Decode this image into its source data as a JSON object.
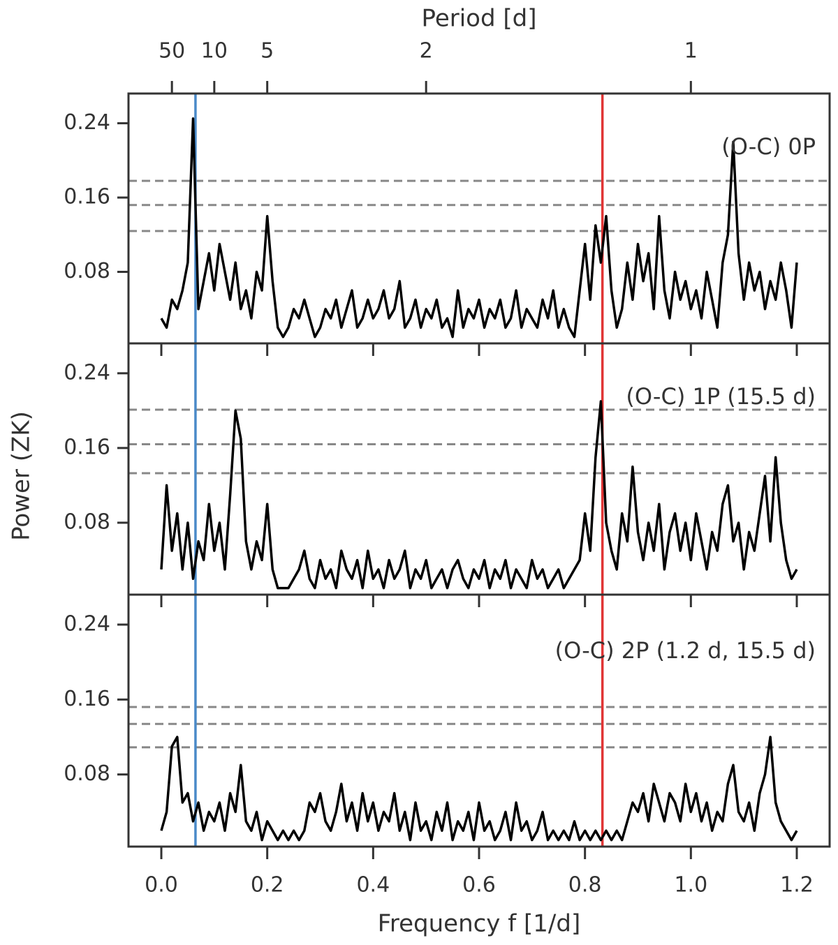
{
  "chart_data": [
    {
      "type": "line",
      "label": "(O-C) 0P",
      "x2label": "Period [d]",
      "x2ticks": [
        50,
        10,
        5,
        2,
        1
      ],
      "xlim": [
        -0.062,
        1.262
      ],
      "ylim": [
        0.003,
        0.272
      ],
      "yticks": [
        0.24,
        0.16,
        0.08
      ],
      "xticks": [
        {
          "value": 0,
          "label": "0.0"
        },
        0.2,
        0.4,
        0.6,
        0.8,
        {
          "value": 1,
          "label": "1.0"
        },
        1.2
      ],
      "vlines": [
        {
          "x": 0.0645,
          "color": "#4a8ac8"
        },
        {
          "x": 0.833,
          "color": "#e03535"
        }
      ],
      "hlines": [
        0.178,
        0.152,
        0.124
      ],
      "color": "#000000",
      "x": [
        0,
        0.01,
        0.02,
        0.03,
        0.04,
        0.05,
        0.06,
        0.07,
        0.08,
        0.09,
        0.1,
        0.11,
        0.12,
        0.13,
        0.14,
        0.15,
        0.16,
        0.17,
        0.18,
        0.19,
        0.2,
        0.21,
        0.22,
        0.23,
        0.24,
        0.25,
        0.26,
        0.27,
        0.28,
        0.29,
        0.3,
        0.31,
        0.32,
        0.33,
        0.34,
        0.35,
        0.36,
        0.37,
        0.38,
        0.39,
        0.4,
        0.41,
        0.42,
        0.43,
        0.44,
        0.45,
        0.46,
        0.47,
        0.48,
        0.49,
        0.5,
        0.51,
        0.52,
        0.53,
        0.54,
        0.55,
        0.56,
        0.57,
        0.58,
        0.59,
        0.6,
        0.61,
        0.62,
        0.63,
        0.64,
        0.65,
        0.66,
        0.67,
        0.68,
        0.69,
        0.7,
        0.71,
        0.72,
        0.73,
        0.74,
        0.75,
        0.76,
        0.77,
        0.78,
        0.79,
        0.8,
        0.81,
        0.82,
        0.83,
        0.84,
        0.85,
        0.86,
        0.87,
        0.88,
        0.89,
        0.9,
        0.91,
        0.92,
        0.93,
        0.94,
        0.95,
        0.96,
        0.97,
        0.98,
        0.99,
        1,
        1.01,
        1.02,
        1.03,
        1.04,
        1.05,
        1.06,
        1.07,
        1.08,
        1.09,
        1.1,
        1.11,
        1.12,
        1.13,
        1.14,
        1.15,
        1.16,
        1.17,
        1.18,
        1.19,
        1.2
      ],
      "values": [
        0.03,
        0.02,
        0.05,
        0.04,
        0.06,
        0.09,
        0.245,
        0.04,
        0.07,
        0.1,
        0.06,
        0.11,
        0.08,
        0.05,
        0.09,
        0.04,
        0.06,
        0.03,
        0.08,
        0.06,
        0.14,
        0.07,
        0.02,
        0.01,
        0.02,
        0.04,
        0.03,
        0.05,
        0.03,
        0.01,
        0.02,
        0.04,
        0.03,
        0.05,
        0.02,
        0.04,
        0.06,
        0.02,
        0.03,
        0.05,
        0.03,
        0.04,
        0.06,
        0.03,
        0.04,
        0.07,
        0.02,
        0.03,
        0.05,
        0.02,
        0.04,
        0.03,
        0.05,
        0.02,
        0.03,
        0.01,
        0.06,
        0.02,
        0.04,
        0.03,
        0.05,
        0.02,
        0.04,
        0.03,
        0.05,
        0.02,
        0.03,
        0.06,
        0.02,
        0.04,
        0.03,
        0.02,
        0.05,
        0.03,
        0.06,
        0.02,
        0.04,
        0.02,
        0.01,
        0.06,
        0.11,
        0.05,
        0.13,
        0.09,
        0.14,
        0.06,
        0.02,
        0.04,
        0.09,
        0.05,
        0.11,
        0.07,
        0.1,
        0.04,
        0.14,
        0.06,
        0.03,
        0.08,
        0.05,
        0.07,
        0.04,
        0.06,
        0.03,
        0.08,
        0.05,
        0.02,
        0.09,
        0.12,
        0.22,
        0.1,
        0.05,
        0.09,
        0.06,
        0.08,
        0.04,
        0.07,
        0.05,
        0.09,
        0.06,
        0.02,
        0.09
      ]
    },
    {
      "type": "line",
      "label": "(O-C) 1P (15.5 d)",
      "ylabel": "Power (ZK)",
      "xlim": [
        -0.062,
        1.262
      ],
      "ylim": [
        0.003,
        0.272
      ],
      "yticks": [
        0.24,
        0.16,
        0.08
      ],
      "vlines": [
        {
          "x": 0.0645,
          "color": "#4a8ac8"
        },
        {
          "x": 0.833,
          "color": "#e03535"
        }
      ],
      "hlines": [
        0.201,
        0.164,
        0.133
      ],
      "color": "#000000",
      "x": [
        0,
        0.01,
        0.02,
        0.03,
        0.04,
        0.05,
        0.06,
        0.07,
        0.08,
        0.09,
        0.1,
        0.11,
        0.12,
        0.13,
        0.14,
        0.15,
        0.16,
        0.17,
        0.18,
        0.19,
        0.2,
        0.21,
        0.22,
        0.23,
        0.24,
        0.25,
        0.26,
        0.27,
        0.28,
        0.29,
        0.3,
        0.31,
        0.32,
        0.33,
        0.34,
        0.35,
        0.36,
        0.37,
        0.38,
        0.39,
        0.4,
        0.41,
        0.42,
        0.43,
        0.44,
        0.45,
        0.46,
        0.47,
        0.48,
        0.49,
        0.5,
        0.51,
        0.52,
        0.53,
        0.54,
        0.55,
        0.56,
        0.57,
        0.58,
        0.59,
        0.6,
        0.61,
        0.62,
        0.63,
        0.64,
        0.65,
        0.66,
        0.67,
        0.68,
        0.69,
        0.7,
        0.71,
        0.72,
        0.73,
        0.74,
        0.75,
        0.76,
        0.77,
        0.78,
        0.79,
        0.8,
        0.81,
        0.82,
        0.83,
        0.84,
        0.85,
        0.86,
        0.87,
        0.88,
        0.89,
        0.9,
        0.91,
        0.92,
        0.93,
        0.94,
        0.95,
        0.96,
        0.97,
        0.98,
        0.99,
        1,
        1.01,
        1.02,
        1.03,
        1.04,
        1.05,
        1.06,
        1.07,
        1.08,
        1.09,
        1.1,
        1.11,
        1.12,
        1.13,
        1.14,
        1.15,
        1.16,
        1.17,
        1.18,
        1.19,
        1.2
      ],
      "values": [
        0.03,
        0.12,
        0.05,
        0.09,
        0.03,
        0.08,
        0.02,
        0.06,
        0.04,
        0.1,
        0.05,
        0.08,
        0.03,
        0.11,
        0.2,
        0.17,
        0.06,
        0.03,
        0.06,
        0.04,
        0.1,
        0.03,
        0.01,
        0.01,
        0.01,
        0.02,
        0.03,
        0.05,
        0.02,
        0.01,
        0.04,
        0.02,
        0.03,
        0.01,
        0.05,
        0.03,
        0.02,
        0.04,
        0.01,
        0.05,
        0.02,
        0.03,
        0.01,
        0.04,
        0.02,
        0.03,
        0.05,
        0.01,
        0.03,
        0.02,
        0.04,
        0.01,
        0.02,
        0.03,
        0.01,
        0.03,
        0.04,
        0.02,
        0.01,
        0.03,
        0.02,
        0.04,
        0.01,
        0.03,
        0.02,
        0.04,
        0.01,
        0.03,
        0.02,
        0.01,
        0.04,
        0.02,
        0.03,
        0.01,
        0.02,
        0.03,
        0.01,
        0.02,
        0.03,
        0.04,
        0.09,
        0.05,
        0.15,
        0.21,
        0.08,
        0.05,
        0.03,
        0.09,
        0.06,
        0.14,
        0.07,
        0.04,
        0.08,
        0.05,
        0.1,
        0.03,
        0.07,
        0.09,
        0.05,
        0.08,
        0.04,
        0.09,
        0.06,
        0.03,
        0.07,
        0.05,
        0.1,
        0.12,
        0.06,
        0.08,
        0.03,
        0.07,
        0.05,
        0.09,
        0.13,
        0.06,
        0.15,
        0.08,
        0.04,
        0.02,
        0.03
      ]
    },
    {
      "type": "line",
      "label": "(O-C) 2P (1.2 d, 15.5 d)",
      "xlabel": "Frequency f [1/d]",
      "xlim": [
        -0.062,
        1.262
      ],
      "ylim": [
        0.003,
        0.272
      ],
      "yticks": [
        0.24,
        0.16,
        0.08
      ],
      "xticks": [
        {
          "value": 0,
          "label": "0.0"
        },
        0.2,
        0.4,
        0.6,
        0.8,
        {
          "value": 1,
          "label": "1.0"
        },
        1.2
      ],
      "vlines": [
        {
          "x": 0.0645,
          "color": "#4a8ac8"
        },
        {
          "x": 0.833,
          "color": "#e03535"
        }
      ],
      "hlines": [
        0.152,
        0.134,
        0.109
      ],
      "color": "#000000",
      "x": [
        0,
        0.01,
        0.02,
        0.03,
        0.04,
        0.05,
        0.06,
        0.07,
        0.08,
        0.09,
        0.1,
        0.11,
        0.12,
        0.13,
        0.14,
        0.15,
        0.16,
        0.17,
        0.18,
        0.19,
        0.2,
        0.21,
        0.22,
        0.23,
        0.24,
        0.25,
        0.26,
        0.27,
        0.28,
        0.29,
        0.3,
        0.31,
        0.32,
        0.33,
        0.34,
        0.35,
        0.36,
        0.37,
        0.38,
        0.39,
        0.4,
        0.41,
        0.42,
        0.43,
        0.44,
        0.45,
        0.46,
        0.47,
        0.48,
        0.49,
        0.5,
        0.51,
        0.52,
        0.53,
        0.54,
        0.55,
        0.56,
        0.57,
        0.58,
        0.59,
        0.6,
        0.61,
        0.62,
        0.63,
        0.64,
        0.65,
        0.66,
        0.67,
        0.68,
        0.69,
        0.7,
        0.71,
        0.72,
        0.73,
        0.74,
        0.75,
        0.76,
        0.77,
        0.78,
        0.79,
        0.8,
        0.81,
        0.82,
        0.83,
        0.84,
        0.85,
        0.86,
        0.87,
        0.88,
        0.89,
        0.9,
        0.91,
        0.92,
        0.93,
        0.94,
        0.95,
        0.96,
        0.97,
        0.98,
        0.99,
        1,
        1.01,
        1.02,
        1.03,
        1.04,
        1.05,
        1.06,
        1.07,
        1.08,
        1.09,
        1.1,
        1.11,
        1.12,
        1.13,
        1.14,
        1.15,
        1.16,
        1.17,
        1.18,
        1.19,
        1.2
      ],
      "values": [
        0.02,
        0.04,
        0.11,
        0.12,
        0.05,
        0.06,
        0.03,
        0.05,
        0.02,
        0.04,
        0.03,
        0.05,
        0.02,
        0.06,
        0.04,
        0.09,
        0.03,
        0.02,
        0.04,
        0.01,
        0.03,
        0.02,
        0.01,
        0.02,
        0.01,
        0.02,
        0.01,
        0.02,
        0.05,
        0.04,
        0.06,
        0.03,
        0.02,
        0.04,
        0.07,
        0.03,
        0.05,
        0.02,
        0.06,
        0.03,
        0.05,
        0.02,
        0.04,
        0.03,
        0.06,
        0.02,
        0.04,
        0.01,
        0.05,
        0.02,
        0.03,
        0.01,
        0.04,
        0.02,
        0.05,
        0.01,
        0.03,
        0.02,
        0.04,
        0.01,
        0.05,
        0.02,
        0.03,
        0.01,
        0.02,
        0.04,
        0.01,
        0.05,
        0.02,
        0.03,
        0.01,
        0.02,
        0.04,
        0.01,
        0.02,
        0.01,
        0.02,
        0.01,
        0.03,
        0.01,
        0.02,
        0.01,
        0.02,
        0.01,
        0.02,
        0.01,
        0.02,
        0.01,
        0.03,
        0.05,
        0.04,
        0.06,
        0.03,
        0.07,
        0.05,
        0.03,
        0.06,
        0.05,
        0.03,
        0.07,
        0.04,
        0.06,
        0.03,
        0.05,
        0.02,
        0.04,
        0.03,
        0.07,
        0.09,
        0.04,
        0.03,
        0.05,
        0.02,
        0.06,
        0.08,
        0.12,
        0.05,
        0.03,
        0.02,
        0.01,
        0.02
      ]
    }
  ]
}
